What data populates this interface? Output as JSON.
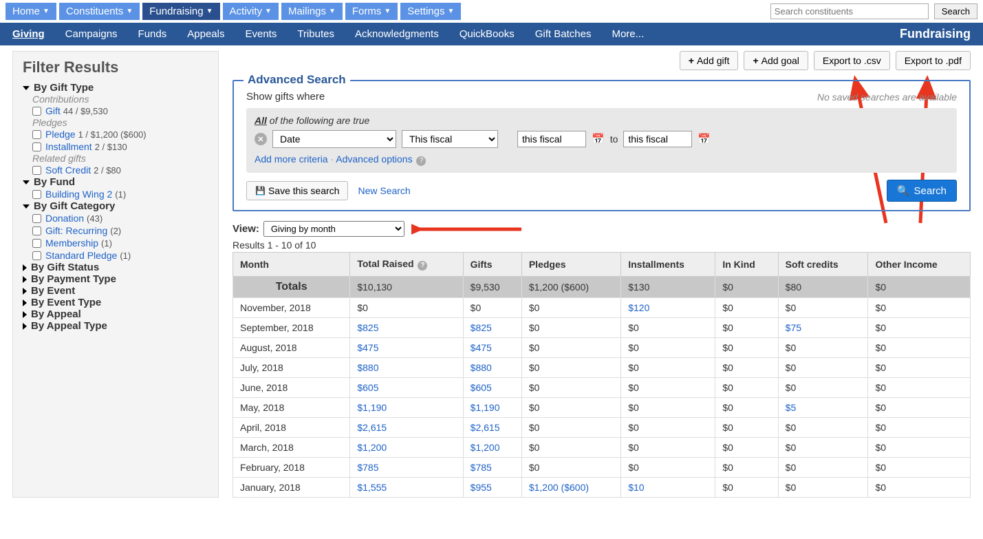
{
  "topnav": [
    "Home",
    "Constituents",
    "Fundraising",
    "Activity",
    "Mailings",
    "Forms",
    "Settings"
  ],
  "topnav_active": 2,
  "global_search_placeholder": "Search constituents",
  "global_search_btn": "Search",
  "subnav": [
    "Giving",
    "Campaigns",
    "Funds",
    "Appeals",
    "Events",
    "Tributes",
    "Acknowledgments",
    "QuickBooks",
    "Gift Batches",
    "More..."
  ],
  "subnav_active": 0,
  "subnav_title": "Fundraising",
  "sidebar_title": "Filter Results",
  "filters": {
    "gift_type": {
      "label": "By Gift Type",
      "contributions_label": "Contributions",
      "gift": {
        "label": "Gift",
        "meta": "44 / $9,530"
      },
      "pledges_label": "Pledges",
      "pledge": {
        "label": "Pledge",
        "meta": "1 / $1,200 ($600)"
      },
      "installment": {
        "label": "Installment",
        "meta": "2 / $130"
      },
      "related_label": "Related gifts",
      "soft": {
        "label": "Soft Credit",
        "meta": "2 / $80"
      }
    },
    "fund": {
      "label": "By Fund",
      "items": [
        {
          "label": "Building Wing 2",
          "meta": "(1)"
        }
      ]
    },
    "category": {
      "label": "By Gift Category",
      "items": [
        {
          "label": "Donation",
          "meta": "(43)"
        },
        {
          "label": "Gift: Recurring",
          "meta": "(2)"
        },
        {
          "label": "Membership",
          "meta": "(1)"
        },
        {
          "label": "Standard Pledge",
          "meta": "(1)"
        }
      ]
    },
    "collapsed": [
      "By Gift Status",
      "By Payment Type",
      "By Event",
      "By Event Type",
      "By Appeal",
      "By Appeal Type"
    ]
  },
  "actions": {
    "add_gift": "Add gift",
    "add_goal": "Add goal",
    "export_csv": "Export to .csv",
    "export_pdf": "Export to .pdf"
  },
  "adv": {
    "title": "Advanced Search",
    "show_where": "Show gifts where",
    "no_saved": "No saved searches are available",
    "all_following": "of the following are true",
    "all": "All",
    "field_sel": "Date",
    "range_sel": "This fiscal",
    "from": "this fiscal",
    "to_label": "to",
    "to": "this fiscal",
    "add_more": "Add more criteria",
    "adv_opt": "Advanced options",
    "save": "Save this search",
    "new": "New Search",
    "search": "Search"
  },
  "view_label": "View:",
  "view_value": "Giving by month",
  "results_text": "Results 1 - 10 of 10",
  "columns": [
    "Month",
    "Total Raised",
    "Gifts",
    "Pledges",
    "Installments",
    "In Kind",
    "Soft credits",
    "Other Income"
  ],
  "totals_label": "Totals",
  "totals": [
    "$10,130",
    "$9,530",
    "$1,200 ($600)",
    "$130",
    "$0",
    "$80",
    "$0"
  ],
  "rows": [
    {
      "m": "November, 2018",
      "v": [
        "$0",
        "$0",
        "$0",
        "$120",
        "$0",
        "$0",
        "$0"
      ],
      "links": [
        3
      ]
    },
    {
      "m": "September, 2018",
      "v": [
        "$825",
        "$825",
        "$0",
        "$0",
        "$0",
        "$75",
        "$0"
      ],
      "links": [
        0,
        1,
        5
      ]
    },
    {
      "m": "August, 2018",
      "v": [
        "$475",
        "$475",
        "$0",
        "$0",
        "$0",
        "$0",
        "$0"
      ],
      "links": [
        0,
        1
      ]
    },
    {
      "m": "July, 2018",
      "v": [
        "$880",
        "$880",
        "$0",
        "$0",
        "$0",
        "$0",
        "$0"
      ],
      "links": [
        0,
        1
      ]
    },
    {
      "m": "June, 2018",
      "v": [
        "$605",
        "$605",
        "$0",
        "$0",
        "$0",
        "$0",
        "$0"
      ],
      "links": [
        0,
        1
      ]
    },
    {
      "m": "May, 2018",
      "v": [
        "$1,190",
        "$1,190",
        "$0",
        "$0",
        "$0",
        "$5",
        "$0"
      ],
      "links": [
        0,
        1,
        5
      ]
    },
    {
      "m": "April, 2018",
      "v": [
        "$2,615",
        "$2,615",
        "$0",
        "$0",
        "$0",
        "$0",
        "$0"
      ],
      "links": [
        0,
        1
      ]
    },
    {
      "m": "March, 2018",
      "v": [
        "$1,200",
        "$1,200",
        "$0",
        "$0",
        "$0",
        "$0",
        "$0"
      ],
      "links": [
        0,
        1
      ]
    },
    {
      "m": "February, 2018",
      "v": [
        "$785",
        "$785",
        "$0",
        "$0",
        "$0",
        "$0",
        "$0"
      ],
      "links": [
        0,
        1
      ]
    },
    {
      "m": "January, 2018",
      "v": [
        "$1,555",
        "$955",
        "$1,200 ($600)",
        "$10",
        "$0",
        "$0",
        "$0"
      ],
      "links": [
        0,
        1,
        2,
        3
      ]
    }
  ],
  "colors": {
    "link": "#1e62c7",
    "navblue": "#5b92e5",
    "navdark": "#2a5897",
    "arrow": "#e8351f"
  }
}
